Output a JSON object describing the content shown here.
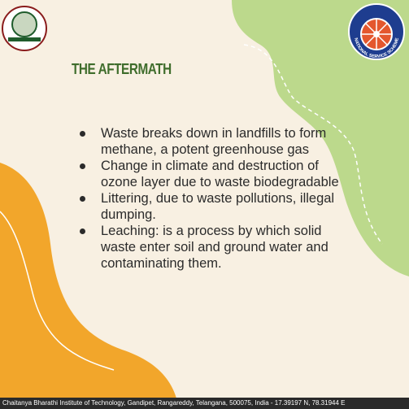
{
  "header": {
    "title": "THE AFTERMATH",
    "logo_right_caption": "NATIONAL SERVICE SCHEME"
  },
  "bullets": [
    "Waste breaks down in landfills to form methane, a  potent greenhouse gas",
    "Change in climate and destruction of ozone  layer due to waste biodegradable",
    "Littering, due to waste pollutions, illegal dumping.",
    "Leaching: is a process by which solid waste enter soil and ground water and contaminating them."
  ],
  "footer": {
    "text": "Chaitanya Bharathi Institute of Technology, Gandipet, Rangareddy, Telangana, 500075, India - 17.39197 N, 78.31944 E"
  }
}
